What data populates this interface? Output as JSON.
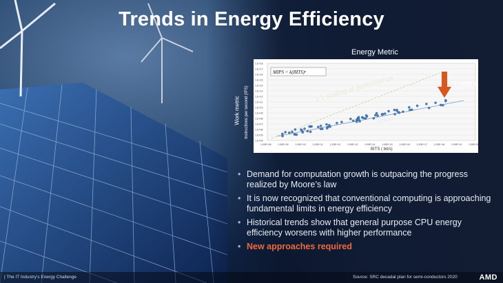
{
  "slide": {
    "title": "Trends in Energy Efficiency",
    "chart_title": "Energy Metric",
    "bullets": [
      "Demand for computation growth is outpacing the progress realized by Moore’s law",
      "It is now recognized that conventional computing is approaching fundamental limits in energy efficiency",
      "Historical trends show that general purpose CPU energy efficiency worsens with higher performance"
    ],
    "bullet_accent": "New approaches required",
    "bullet_marker": "•"
  },
  "footer": {
    "left": "|   The IT Industry’s Energy Challenge",
    "right": "Source: SRC decadal plan for semi-conductors 2020",
    "logo": "AMD"
  },
  "chart": {
    "formula": "MIPS = k(BITS)ᵅ",
    "annotation_scaling": "1:1 scaling of performance",
    "annotation_actual": "actual",
    "annotation_factor": "1,000,000X",
    "xlabel": "BITS ( bit/s)",
    "ylabel_main": "Work metric",
    "ylabel_sub": "Instructions per second (IPS)",
    "x_ticks": [
      "1.00E+08",
      "1.00E+09",
      "1.00E+10",
      "1.00E+11",
      "1.00E+12",
      "1.00E+13",
      "1.00E+14",
      "1.00E+15",
      "1.00E+16",
      "1.00E+17",
      "1.00E+18",
      "1.00E+19",
      "1.00E+20"
    ],
    "y_ticks": [
      "1.E+04",
      "1.E+05",
      "1.E+06",
      "1.E+07",
      "1.E+08",
      "1.E+09",
      "1.E+10",
      "1.E+11",
      "1.E+12",
      "1.E+13",
      "1.E+14",
      "1.E+15",
      "1.E+16",
      "1.E+17",
      "1.E+18"
    ],
    "colors": {
      "accent": "#e8571f",
      "points": "#4a84c4",
      "bg": "#ffffff"
    }
  }
}
